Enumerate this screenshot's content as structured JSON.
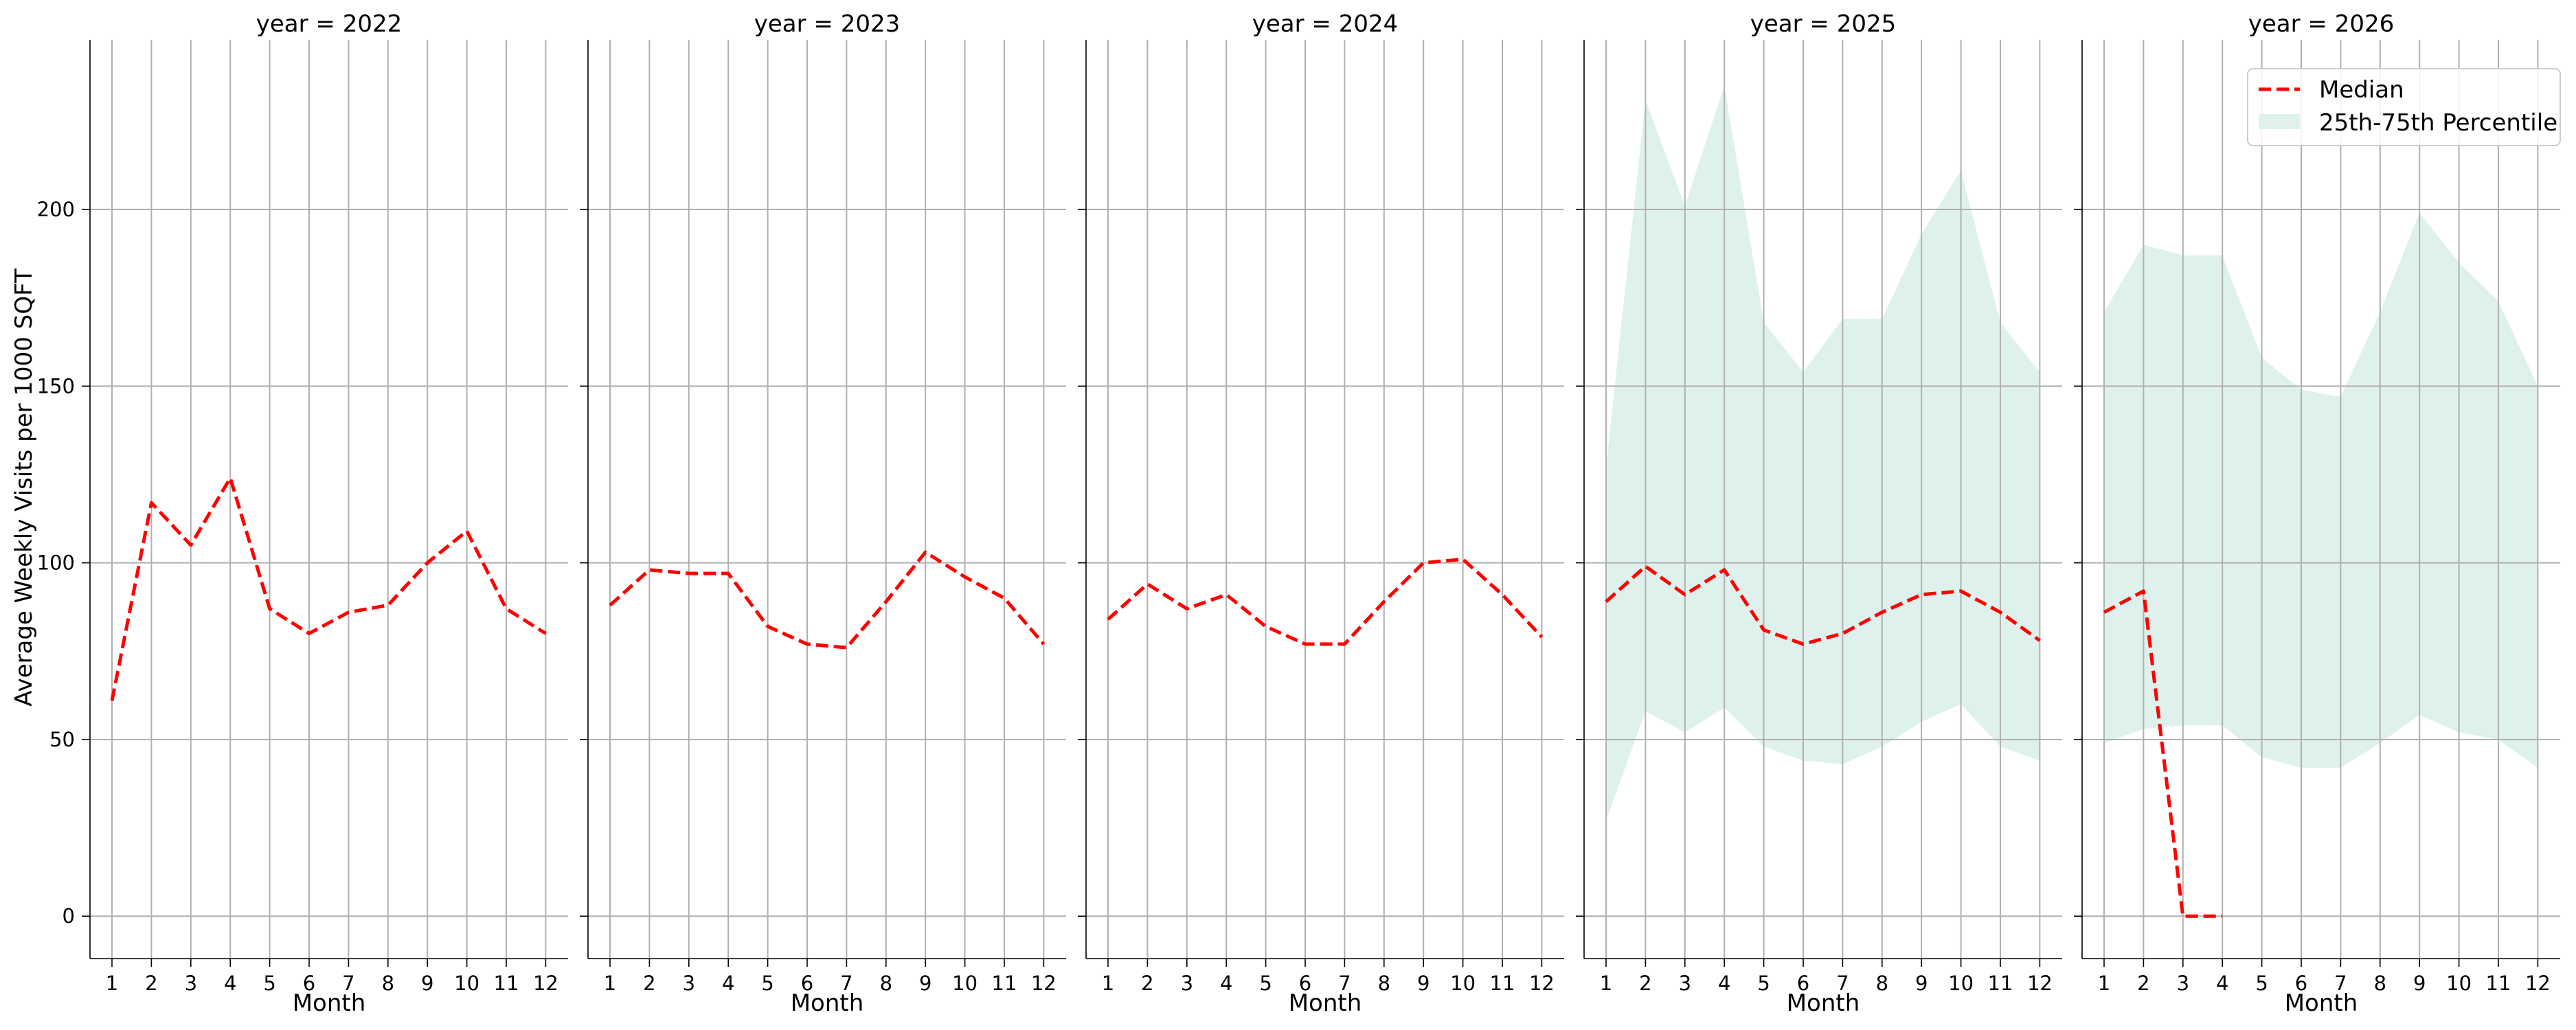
{
  "chart_data": {
    "type": "line",
    "ylabel": "Average Weekly Visits per 1000 SQFT",
    "xlabel": "Month",
    "x": [
      1,
      2,
      3,
      4,
      5,
      6,
      7,
      8,
      9,
      10,
      11,
      12
    ],
    "ylim": [
      -12,
      248
    ],
    "yticks": [
      0,
      50,
      100,
      150,
      200
    ],
    "grid": true,
    "shared_y": true,
    "legend": {
      "placement": "top-right of last panel",
      "entries": [
        {
          "label": "Median",
          "style": "dashed-line",
          "color": "#ff0000"
        },
        {
          "label": "25th-75th Percentile",
          "style": "band",
          "color": "#dff1ec"
        }
      ]
    },
    "colors": {
      "median": "#ff0000",
      "band": "#dff1ec",
      "grid": "#b0b0b0"
    },
    "panels": [
      {
        "title": "year = 2022",
        "median": [
          61,
          117,
          105,
          124,
          87,
          80,
          86,
          88,
          100,
          109,
          87,
          80
        ]
      },
      {
        "title": "year = 2023",
        "median": [
          88,
          98,
          97,
          97,
          82,
          77,
          76,
          89,
          103,
          96,
          90,
          77
        ]
      },
      {
        "title": "year = 2024",
        "median": [
          84,
          94,
          87,
          91,
          82,
          77,
          77,
          89,
          100,
          101,
          91,
          79
        ]
      },
      {
        "title": "year = 2025",
        "median": [
          89,
          99,
          91,
          98,
          81,
          77,
          80,
          86,
          91,
          92,
          86,
          78
        ],
        "p25": [
          27,
          58,
          52,
          59,
          48,
          44,
          43,
          48,
          55,
          60,
          48,
          44
        ],
        "p75": [
          127,
          231,
          201,
          235,
          168,
          154,
          169,
          169,
          193,
          211,
          168,
          154
        ]
      },
      {
        "title": "year = 2026",
        "median": [
          86,
          92,
          0,
          0,
          null,
          null,
          null,
          null,
          null,
          null,
          null,
          null
        ],
        "p25": [
          49,
          53,
          54,
          54,
          45,
          42,
          42,
          49,
          57,
          52,
          50,
          42
        ],
        "p75": [
          171,
          190,
          187,
          187,
          158,
          149,
          147,
          171,
          199,
          185,
          174,
          150
        ]
      }
    ]
  }
}
